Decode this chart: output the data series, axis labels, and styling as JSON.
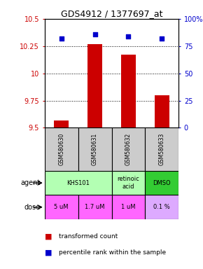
{
  "title": "GDS4912 / 1377697_at",
  "samples": [
    "GSM580630",
    "GSM580631",
    "GSM580632",
    "GSM580633"
  ],
  "bar_values": [
    9.57,
    10.27,
    10.17,
    9.8
  ],
  "percentile_values": [
    82,
    86,
    84,
    82
  ],
  "ylim_left": [
    9.5,
    10.5
  ],
  "ylim_right": [
    0,
    100
  ],
  "yticks_left": [
    9.5,
    9.75,
    10.0,
    10.25,
    10.5
  ],
  "yticks_right": [
    0,
    25,
    50,
    75,
    100
  ],
  "ytick_labels_left": [
    "9.5",
    "9.75",
    "10",
    "10.25",
    "10.5"
  ],
  "ytick_labels_right": [
    "0",
    "25",
    "50",
    "75",
    "100%"
  ],
  "bar_color": "#cc0000",
  "dot_color": "#0000cc",
  "agent_defs": [
    [
      0,
      1,
      "KHS101",
      "#b3ffb3"
    ],
    [
      2,
      2,
      "retinoic\nacid",
      "#b3ffb3"
    ],
    [
      3,
      3,
      "DMSO",
      "#33cc33"
    ]
  ],
  "doses": [
    "5 uM",
    "1.7 uM",
    "1 uM",
    "0.1 %"
  ],
  "dose_colors": [
    "#ff66ff",
    "#ff66ff",
    "#ff66ff",
    "#ddaaff"
  ],
  "sample_bg_color": "#cccccc",
  "left_axis_color": "#cc0000",
  "right_axis_color": "#0000cc"
}
